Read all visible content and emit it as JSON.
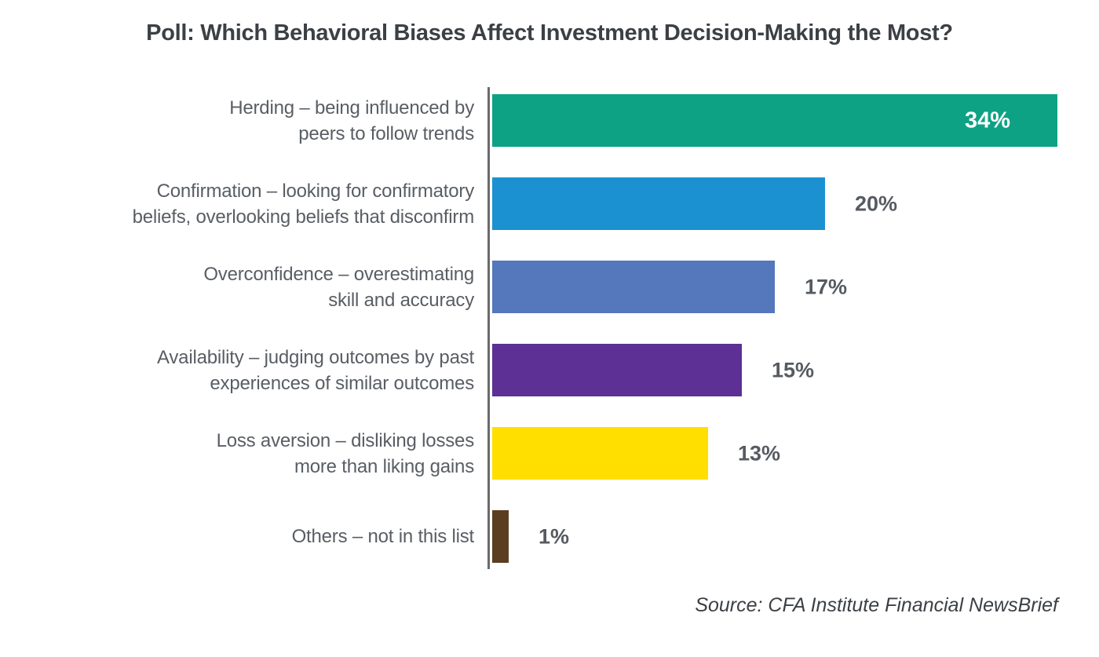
{
  "page": {
    "background": "#ffffff"
  },
  "header": {
    "title": "Poll: Which Behavioral Biases Affect Investment Decision-Making the Most?"
  },
  "footer": {
    "source": "Source: CFA Institute Financial NewsBrief"
  },
  "chart_data": {
    "type": "bar",
    "orientation": "horizontal",
    "title": "Poll: Which Behavioral Biases Affect Investment Decision-Making the Most?",
    "xlabel": "",
    "ylabel": "",
    "xlim": [
      0,
      34
    ],
    "grid": false,
    "legend": false,
    "axis_color": "#6a6a6a",
    "categories": [
      "Herding – being influenced by peers to follow trends",
      "Confirmation – looking for confirmatory beliefs, overlooking beliefs that disconfirm",
      "Overconfidence – overestimating skill and accuracy",
      "Availability – judging outcomes by past experiences of similar outcomes",
      "Loss aversion – disliking losses more than liking gains",
      "Others – not in this list"
    ],
    "values": [
      34,
      20,
      17,
      15,
      13,
      1
    ],
    "bars": [
      {
        "label_lines": [
          "Herding – being influenced by",
          "peers to follow trends"
        ],
        "value": 34,
        "value_label": "34%",
        "color": "#0ea284",
        "value_label_inside": true
      },
      {
        "label_lines": [
          "Confirmation – looking for confirmatory",
          "beliefs, overlooking beliefs that disconfirm"
        ],
        "value": 20,
        "value_label": "20%",
        "color": "#1b91d1",
        "value_label_inside": false
      },
      {
        "label_lines": [
          "Overconfidence – overestimating",
          "skill and accuracy"
        ],
        "value": 17,
        "value_label": "17%",
        "color": "#5577bb",
        "value_label_inside": false
      },
      {
        "label_lines": [
          "Availability – judging outcomes by past",
          "experiences of similar outcomes"
        ],
        "value": 15,
        "value_label": "15%",
        "color": "#5c3094",
        "value_label_inside": false
      },
      {
        "label_lines": [
          "Loss aversion – disliking losses",
          "more than liking gains"
        ],
        "value": 13,
        "value_label": "13%",
        "color": "#ffdf00",
        "value_label_inside": false
      },
      {
        "label_lines": [
          "Others – not in this list"
        ],
        "value": 1,
        "value_label": "1%",
        "color": "#5b3e20",
        "value_label_inside": false
      }
    ]
  }
}
